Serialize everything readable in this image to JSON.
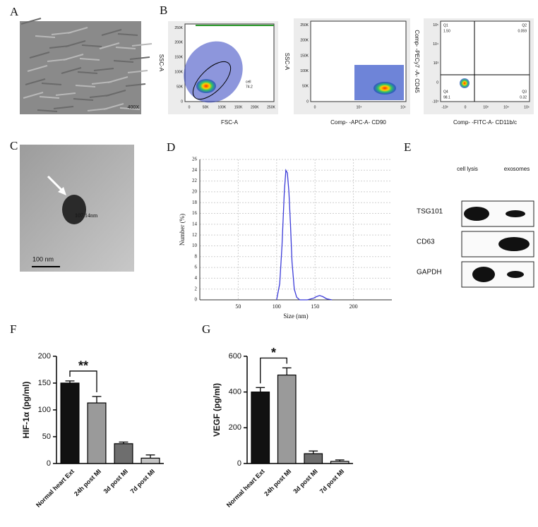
{
  "panel_labels": [
    "A",
    "B",
    "C",
    "D",
    "E",
    "F",
    "G"
  ],
  "micrograph": {
    "magnification": "400X"
  },
  "flow_cytometry": [
    {
      "y_label": "SSC-A",
      "x_label": "FSC-A",
      "yticks": [
        "0",
        "50K",
        "100K",
        "150K",
        "200K",
        "250K"
      ],
      "xticks": [
        "0",
        "50K",
        "100K",
        "150K",
        "200K",
        "250K"
      ],
      "gate": {
        "name": "cell",
        "value": "74.2"
      }
    },
    {
      "y_label": "SSC-A",
      "x_label": "Comp- -APC-A- CD90",
      "yticks": [
        "0",
        "50K",
        "100K",
        "150K",
        "200K",
        "250K"
      ],
      "xticks": [
        "0",
        "10⁴",
        "10⁵"
      ]
    },
    {
      "y_label": "Comp- -PECy7 -A- CD45",
      "x_label": "Comp- -FITC-A- CD11b/c",
      "yticks": [
        "-10³",
        "0",
        "10³",
        "10⁴",
        "10⁵"
      ],
      "xticks": [
        "-10³",
        "0",
        "10³",
        "10⁴",
        "10⁵"
      ],
      "quadrants": [
        {
          "name": "Q1",
          "value": "1.50"
        },
        {
          "name": "Q2",
          "value": "0.059"
        },
        {
          "name": "Q3",
          "value": "0.32"
        },
        {
          "name": "Q4",
          "value": "98.1"
        }
      ]
    }
  ],
  "tem": {
    "scale_bar": "100 nm",
    "size_label": "107.14nm"
  },
  "western_blot": {
    "columns": [
      "cell lysis",
      "exosomes"
    ],
    "rows": [
      "TSG101",
      "CD63",
      "GAPDH"
    ]
  },
  "chart_data": [
    {
      "type": "line",
      "x_label": "Size (nm)",
      "y_label": "Number (%)",
      "x": [
        100,
        104,
        107,
        110,
        112,
        114,
        116,
        118,
        120,
        123,
        126,
        130,
        140,
        148,
        152,
        156,
        160,
        165,
        172
      ],
      "values": [
        0,
        3,
        10,
        20,
        24,
        23.5,
        20,
        14,
        7,
        2,
        0.5,
        0,
        0,
        0.3,
        0.6,
        0.8,
        0.6,
        0.2,
        0
      ],
      "color": "#3b3bd8",
      "xlim": [
        0,
        250
      ],
      "ylim": [
        0,
        26
      ],
      "xticks": [
        50,
        100,
        150,
        200
      ],
      "yticks": [
        0,
        2,
        4,
        6,
        8,
        10,
        12,
        14,
        16,
        18,
        20,
        22,
        24,
        26
      ],
      "grid": true
    },
    {
      "type": "bar",
      "y_label": "HIF-1α (pg/ml)",
      "categories": [
        "Normal heart Ext",
        "24h post MI",
        "3d post MI",
        "7d post MI"
      ],
      "values": [
        150,
        113,
        37,
        10
      ],
      "errors": [
        4,
        12,
        3,
        6
      ],
      "colors": [
        "#111111",
        "#9a9a9a",
        "#6e6e6e",
        "#c4c4c4"
      ],
      "ylim": [
        0,
        200
      ],
      "yticks": [
        0,
        50,
        100,
        150,
        200
      ],
      "significance": "**"
    },
    {
      "type": "bar",
      "y_label": "VEGF (pg/ml)",
      "categories": [
        "Normal heart Ext",
        "24h post MI",
        "3d post MI",
        "7d post MI"
      ],
      "values": [
        400,
        495,
        55,
        12
      ],
      "errors": [
        25,
        40,
        15,
        8
      ],
      "colors": [
        "#111111",
        "#9a9a9a",
        "#6e6e6e",
        "#c4c4c4"
      ],
      "ylim": [
        0,
        600
      ],
      "yticks": [
        0,
        200,
        400,
        600
      ],
      "significance": "*"
    }
  ]
}
